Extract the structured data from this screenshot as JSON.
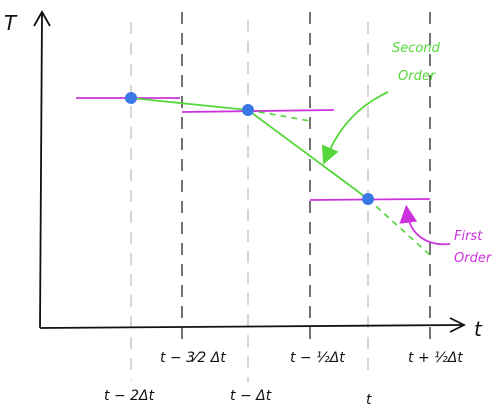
{
  "axes": {
    "y_label": "T",
    "x_label": "t"
  },
  "ticks": {
    "t_minus_2dt": "t − 2Δt",
    "t_minus_3_2dt": "t − 3⁄2 Δt",
    "t_minus_dt": "t − Δt",
    "t_minus_1_2dt": "t − ½Δt",
    "t": "t",
    "t_plus_1_2dt": "t + ½Δt"
  },
  "annotations": {
    "second_order": [
      "Second",
      "Order"
    ],
    "first_order": [
      "First",
      "Order"
    ]
  },
  "colors": {
    "line": "#55d63a",
    "step": "#cc33dd",
    "point": "#3a78e6",
    "axis": "#111111",
    "grid": "#999999"
  }
}
